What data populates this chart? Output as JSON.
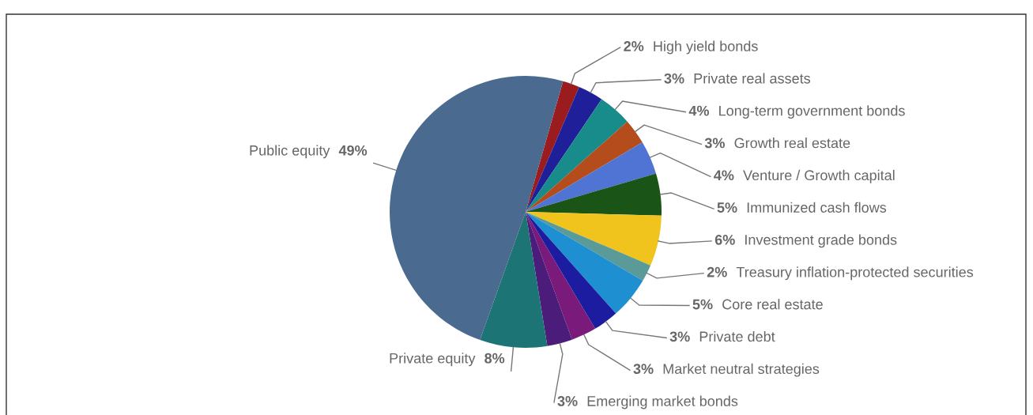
{
  "chart_data": {
    "type": "pie",
    "categories": [
      "High yield bonds",
      "Private real assets",
      "Long-term government bonds",
      "Growth real estate",
      "Venture / Growth capital",
      "Immunized cash flows",
      "Investment grade bonds",
      "Treasury inflation-protected securities",
      "Core real estate",
      "Private debt",
      "Market neutral strategies",
      "Emerging market bonds",
      "Private equity",
      "Public equity"
    ],
    "values": [
      2,
      3,
      4,
      3,
      4,
      5,
      6,
      2,
      5,
      3,
      3,
      3,
      8,
      49
    ],
    "value_labels": [
      "2%",
      "3%",
      "4%",
      "3%",
      "4%",
      "5%",
      "6%",
      "2%",
      "5%",
      "3%",
      "3%",
      "3%",
      "8%",
      "49%"
    ],
    "colors": [
      "#9b1c1f",
      "#1f1f9a",
      "#188c8a",
      "#b44c1c",
      "#4f74d4",
      "#1a5416",
      "#f0c41c",
      "#5a9a98",
      "#1e8fd0",
      "#1c1ca0",
      "#7a1a7a",
      "#4b1c7a",
      "#1c7474",
      "#4a6a90"
    ]
  }
}
